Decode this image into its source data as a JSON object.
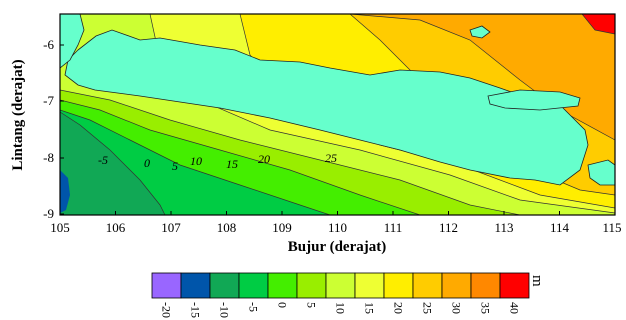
{
  "map": {
    "xlabel": "Bujur (derajat)",
    "ylabel": "Lintang (derajat)",
    "x_ticks": [
      "105",
      "106",
      "107",
      "108",
      "109",
      "110",
      "111",
      "112",
      "113",
      "114",
      "115"
    ],
    "y_ticks": [
      "-6",
      "-7",
      "-8",
      "-9"
    ],
    "contour_labels": [
      "-5",
      "0",
      "5",
      "10",
      "15",
      "20",
      "25"
    ],
    "land_color": "#66ffcc"
  },
  "legend": {
    "unit": "m",
    "levels": [
      "-20",
      "-15",
      "-10",
      "-5",
      "0",
      "5",
      "10",
      "15",
      "20",
      "25",
      "30",
      "35",
      "40"
    ],
    "colors": [
      "#9966ff",
      "#0055aa",
      "#11a855",
      "#00cc44",
      "#44ee00",
      "#99ee00",
      "#ccff33",
      "#eeff33",
      "#ffee00",
      "#ffcc00",
      "#ffaa00",
      "#ff8800",
      "#ff0000"
    ]
  }
}
